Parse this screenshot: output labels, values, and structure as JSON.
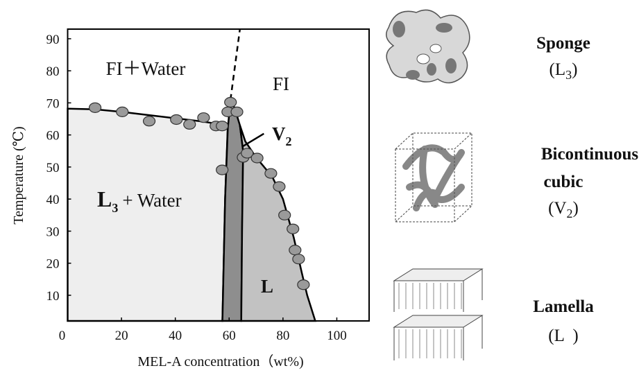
{
  "chart_data": {
    "type": "scatter",
    "x_label": "MEL-A concentration（wt%)",
    "y_label": "Temperature (℃)",
    "xlim": [
      0,
      112
    ],
    "ylim": [
      2,
      93
    ],
    "xticks": [
      0,
      20,
      40,
      60,
      80,
      100
    ],
    "yticks": [
      10,
      20,
      30,
      40,
      50,
      60,
      70,
      80,
      90
    ],
    "point_color": "#9a9a9a",
    "x": [
      10.2,
      20.3,
      30.3,
      40.4,
      45.3,
      50.5,
      55.1,
      57.4,
      57.4,
      59.5,
      60.5,
      62.9,
      65.2,
      66.7,
      70.4,
      75.5,
      78.6,
      80.6,
      83.7,
      84.5,
      85.8,
      87.6
    ],
    "values": [
      68.5,
      67.2,
      64.3,
      64.8,
      63.3,
      65.4,
      62.8,
      62.8,
      49.1,
      67.2,
      70.2,
      67.2,
      53,
      54.3,
      52.8,
      48,
      43.9,
      35,
      30.7,
      24.1,
      21.3,
      13.3
    ],
    "regions": [
      {
        "color": "#eeeeee",
        "x": [
          0,
          10,
          20,
          30,
          40,
          50,
          56,
          59.5,
          58.5,
          57.5,
          0
        ],
        "y": [
          68.2,
          68,
          67.2,
          66.2,
          65.2,
          64.2,
          63.4,
          63,
          40,
          2,
          2
        ]
      },
      {
        "color": "#8e8e8e",
        "x": [
          60.5,
          62,
          64,
          65.2,
          64.8,
          64.5,
          57.5,
          58.5,
          59.5,
          60.5
        ],
        "y": [
          71,
          68.5,
          63,
          55,
          30,
          2,
          2,
          40,
          62,
          71
        ]
      },
      {
        "color": "#c2c2c2",
        "x": [
          64,
          66,
          70,
          76,
          80,
          84,
          87,
          89,
          92,
          64.5,
          64.8,
          65.2
        ],
        "y": [
          63,
          58,
          53,
          47,
          40,
          28,
          17,
          10,
          2,
          2,
          30,
          55
        ]
      }
    ],
    "dashed": {
      "x": [
        60.5,
        64
      ],
      "y": [
        71,
        93
      ]
    },
    "pointer": {
      "x": [
        65.2,
        72.9
      ],
      "y": [
        56.5,
        60.4
      ]
    },
    "annotations": [
      {
        "text": "FI＋Water"
      },
      {
        "text": "FI"
      },
      {
        "text": "V",
        "sub": "2"
      },
      {
        "text": "L",
        "sub": "3",
        "rest": "+ Water"
      },
      {
        "text": "L"
      }
    ]
  },
  "phases": [
    {
      "name": [
        "Sponge"
      ],
      "symbol": {
        "open": "(L",
        "sub": "3",
        "close": ")"
      }
    },
    {
      "name": [
        "Bicontinuous",
        "cubic"
      ],
      "symbol": {
        "open": "(V",
        "sub": "2",
        "close": ")"
      }
    },
    {
      "name": [
        "Lamella"
      ],
      "symbol": {
        "open": "(L  )"
      }
    }
  ]
}
